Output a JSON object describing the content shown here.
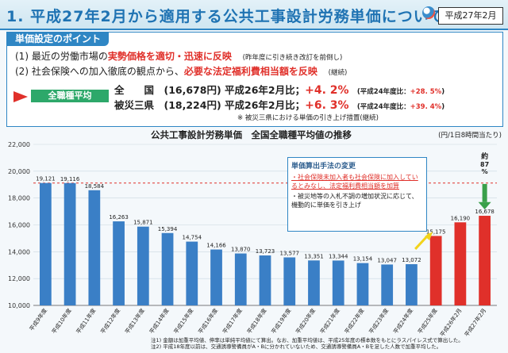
{
  "header": {
    "title": "1. 平成27年2月から適用する公共工事設計労務単価について",
    "date_badge": "平成27年2月"
  },
  "points": {
    "heading": "単価設定のポイント",
    "line1_prefix": "(1) 最近の労働市場の",
    "line1_highlight": "実勢価格を適切・迅速に反映",
    "line1_note": "(昨年度に引き続き改訂を前倒し)",
    "line2_prefix": "(2) 社会保険への加入徹底の観点から、",
    "line2_highlight": "必要な法定福利費相当額を反映",
    "line2_note": "(継続)",
    "tag": "全職種平均",
    "nat_label": "全　　国　(16,678円) 平成26年2月比；",
    "nat_pct": "+4. 2%",
    "nat_fy": "(平成24年度比：",
    "nat_fy_pct": "+28. 5%",
    "nat_close": ")",
    "dis_label": "被災三県　(18,224円) 平成26年2月比；",
    "dis_pct": "+6. 3%",
    "dis_fy": "(平成24年度比：",
    "dis_fy_pct": "+39. 4%",
    "dis_close": ")",
    "footnote": "※ 被災三県における単価の引き上げ措置(継続)"
  },
  "note": {
    "title": "単価算出手法の変更",
    "item1": "・社会保険未加入者も社会保険に加入しているとみなし、法定福利費相当額を加算",
    "item2": "・被災地等の入札不調の増加状況に応じて、機動的に単価を引き上げ"
  },
  "annotation": {
    "about_label": "約",
    "about_pct": "87",
    "about_unit": "%"
  },
  "colors": {
    "accent": "#2f86c4",
    "bar": "#3a7fc6",
    "bar_highlight": "#e0302a",
    "reference_line": "#e0302a",
    "arrow_yellow": "#f2d31b",
    "arrow_green": "#3aa04a"
  },
  "footnotes": {
    "line1": "注1) 金額は加重平均値、伸率は単純平均値にて算出。なお、加重平均値は、平成25年度の標本数をもとにラスパイレス式で算出した。",
    "line2": "注2) 平成18年度以前は、交通誘導警備員がA・Bに分かれていないため、交通誘導警備員A・Bを足した人数で加重平均した。"
  },
  "chart_data": {
    "type": "bar",
    "title": "公共工事設計労務単価　全国全職種平均値の推移",
    "unit_label": "(円/1日8時間当たり)",
    "categories": [
      "平成9年度",
      "平成10年度",
      "平成11年度",
      "平成12年度",
      "平成13年度",
      "平成14年度",
      "平成15年度",
      "平成16年度",
      "平成17年度",
      "平成18年度",
      "平成19年度",
      "平成20年度",
      "平成21年度",
      "平成22年度",
      "平成23年度",
      "平成24年度",
      "平成25年度",
      "平成26年2月",
      "平成27年2月"
    ],
    "values": [
      19121,
      19116,
      18584,
      16263,
      15871,
      15394,
      14754,
      14166,
      13870,
      13723,
      13577,
      13351,
      13344,
      13154,
      13047,
      13072,
      15175,
      16190,
      16678
    ],
    "highlight_indices": [
      16,
      17,
      18
    ],
    "reference_value": 19121,
    "ylim": [
      10000,
      22000
    ],
    "yticks": [
      10000,
      12000,
      14000,
      16000,
      18000,
      20000,
      22000
    ],
    "ytick_labels": [
      "10,000",
      "12,000",
      "14,000",
      "16,000",
      "18,000",
      "20,000",
      "22,000"
    ],
    "grid": true
  }
}
